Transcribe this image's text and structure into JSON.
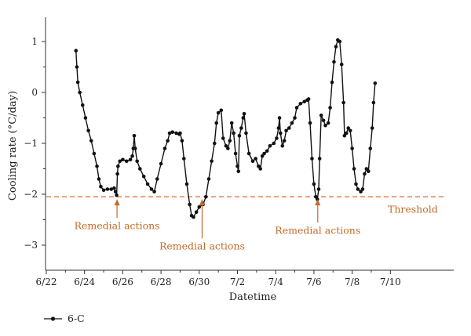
{
  "chart_data": {
    "type": "line",
    "xlabel": "Datetime",
    "ylabel": "Cooling rate (°C/day)",
    "x_tick_labels": [
      "6/22",
      "6/24",
      "6/26",
      "6/28",
      "6/30",
      "7/2",
      "7/4",
      "7/6",
      "7/8",
      "7/10"
    ],
    "y_tick_labels": [
      "−3",
      "−2",
      "−1",
      "0",
      "1"
    ],
    "xlim_days": [
      0,
      19.7
    ],
    "ylim": [
      -3.6,
      1.5
    ],
    "series": [
      {
        "name": "6-C",
        "color": "#111111",
        "marker": "circle",
        "points": [
          [
            1.55,
            0.82
          ],
          [
            1.6,
            0.5
          ],
          [
            1.65,
            0.2
          ],
          [
            1.75,
            0.0
          ],
          [
            1.9,
            -0.25
          ],
          [
            2.05,
            -0.5
          ],
          [
            2.2,
            -0.75
          ],
          [
            2.35,
            -0.95
          ],
          [
            2.5,
            -1.2
          ],
          [
            2.65,
            -1.45
          ],
          [
            2.75,
            -1.7
          ],
          [
            2.85,
            -1.85
          ],
          [
            3.0,
            -1.92
          ],
          [
            3.2,
            -1.9
          ],
          [
            3.4,
            -1.9
          ],
          [
            3.55,
            -1.88
          ],
          [
            3.62,
            -1.95
          ],
          [
            3.68,
            -2.02
          ],
          [
            3.72,
            -1.6
          ],
          [
            3.75,
            -1.45
          ],
          [
            3.85,
            -1.35
          ],
          [
            4.0,
            -1.32
          ],
          [
            4.2,
            -1.35
          ],
          [
            4.4,
            -1.32
          ],
          [
            4.5,
            -1.25
          ],
          [
            4.55,
            -1.1
          ],
          [
            4.6,
            -0.85
          ],
          [
            4.65,
            -1.1
          ],
          [
            4.75,
            -1.35
          ],
          [
            4.9,
            -1.5
          ],
          [
            5.1,
            -1.65
          ],
          [
            5.3,
            -1.8
          ],
          [
            5.5,
            -1.9
          ],
          [
            5.65,
            -1.95
          ],
          [
            5.8,
            -1.7
          ],
          [
            6.0,
            -1.4
          ],
          [
            6.2,
            -1.1
          ],
          [
            6.35,
            -0.95
          ],
          [
            6.45,
            -0.8
          ],
          [
            6.6,
            -0.78
          ],
          [
            6.8,
            -0.8
          ],
          [
            6.95,
            -0.82
          ],
          [
            7.0,
            -0.8
          ],
          [
            7.1,
            -0.95
          ],
          [
            7.2,
            -1.3
          ],
          [
            7.35,
            -1.8
          ],
          [
            7.5,
            -2.2
          ],
          [
            7.6,
            -2.42
          ],
          [
            7.7,
            -2.45
          ],
          [
            7.85,
            -2.35
          ],
          [
            8.0,
            -2.25
          ],
          [
            8.2,
            -2.2
          ],
          [
            8.35,
            -2.05
          ],
          [
            8.5,
            -1.7
          ],
          [
            8.65,
            -1.35
          ],
          [
            8.8,
            -1.0
          ],
          [
            8.9,
            -0.6
          ],
          [
            9.0,
            -0.4
          ],
          [
            9.15,
            -0.35
          ],
          [
            9.25,
            -0.9
          ],
          [
            9.4,
            -1.05
          ],
          [
            9.5,
            -1.1
          ],
          [
            9.6,
            -0.95
          ],
          [
            9.7,
            -0.6
          ],
          [
            9.8,
            -0.8
          ],
          [
            9.9,
            -1.2
          ],
          [
            10.0,
            -1.45
          ],
          [
            10.05,
            -1.55
          ],
          [
            10.1,
            -0.85
          ],
          [
            10.2,
            -0.7
          ],
          [
            10.3,
            -0.5
          ],
          [
            10.35,
            -0.42
          ],
          [
            10.45,
            -0.8
          ],
          [
            10.6,
            -1.2
          ],
          [
            10.8,
            -1.35
          ],
          [
            10.95,
            -1.3
          ],
          [
            11.1,
            -1.45
          ],
          [
            11.2,
            -1.5
          ],
          [
            11.3,
            -1.25
          ],
          [
            11.4,
            -1.2
          ],
          [
            11.55,
            -1.15
          ],
          [
            11.7,
            -1.05
          ],
          [
            11.9,
            -1.0
          ],
          [
            12.05,
            -0.9
          ],
          [
            12.15,
            -0.7
          ],
          [
            12.2,
            -0.5
          ],
          [
            12.25,
            -0.8
          ],
          [
            12.35,
            -1.05
          ],
          [
            12.45,
            -0.95
          ],
          [
            12.55,
            -0.75
          ],
          [
            12.7,
            -0.7
          ],
          [
            12.85,
            -0.6
          ],
          [
            13.0,
            -0.5
          ],
          [
            13.1,
            -0.3
          ],
          [
            13.3,
            -0.22
          ],
          [
            13.5,
            -0.18
          ],
          [
            13.65,
            -0.15
          ],
          [
            13.72,
            -0.13
          ],
          [
            13.8,
            -0.6
          ],
          [
            13.9,
            -1.3
          ],
          [
            14.0,
            -1.8
          ],
          [
            14.1,
            -2.05
          ],
          [
            14.18,
            -2.1
          ],
          [
            14.25,
            -1.9
          ],
          [
            14.3,
            -1.3
          ],
          [
            14.38,
            -0.45
          ],
          [
            14.5,
            -0.55
          ],
          [
            14.6,
            -0.65
          ],
          [
            14.75,
            -0.6
          ],
          [
            14.85,
            -0.3
          ],
          [
            14.95,
            0.2
          ],
          [
            15.05,
            0.6
          ],
          [
            15.15,
            0.9
          ],
          [
            15.25,
            1.03
          ],
          [
            15.35,
            1.0
          ],
          [
            15.45,
            0.55
          ],
          [
            15.55,
            -0.2
          ],
          [
            15.6,
            -0.85
          ],
          [
            15.7,
            -0.8
          ],
          [
            15.8,
            -0.7
          ],
          [
            15.9,
            -0.75
          ],
          [
            16.0,
            -1.1
          ],
          [
            16.1,
            -1.5
          ],
          [
            16.2,
            -1.8
          ],
          [
            16.3,
            -1.9
          ],
          [
            16.45,
            -1.95
          ],
          [
            16.55,
            -1.9
          ],
          [
            16.65,
            -1.6
          ],
          [
            16.75,
            -1.5
          ],
          [
            16.85,
            -1.55
          ],
          [
            16.95,
            -1.1
          ],
          [
            17.05,
            -0.7
          ],
          [
            17.12,
            -0.2
          ],
          [
            17.2,
            0.18
          ]
        ]
      }
    ],
    "threshold": {
      "label": "Threshold",
      "value": -2.05,
      "color": "#e0642a"
    },
    "annotations": [
      {
        "label": "Remedial actions",
        "day": 3.7
      },
      {
        "label": "Remedial actions",
        "day": 8.15
      },
      {
        "label": "Remedial actions",
        "day": 14.2
      }
    ],
    "grid": false,
    "legend_position": "bottom-left"
  }
}
